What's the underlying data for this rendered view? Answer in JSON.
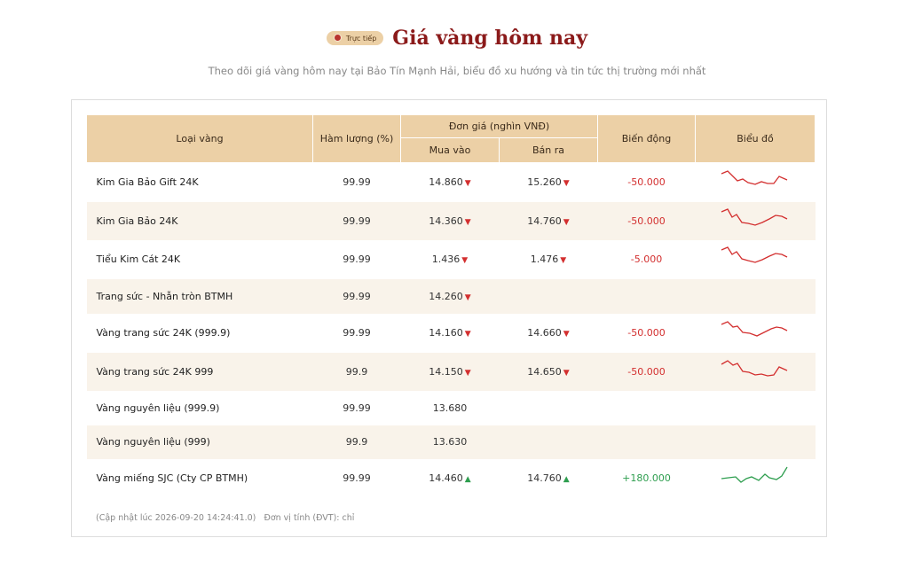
{
  "header": {
    "badge": "Trực tiếp",
    "title": "Giá vàng hôm nay",
    "subtitle": "Theo dõi giá vàng hôm nay tại Bảo Tín Mạnh Hải, biểu đồ xu hướng và tin tức thị trường mới nhất"
  },
  "table": {
    "columns": {
      "type": "Loại vàng",
      "purity": "Hàm lượng (%)",
      "price": "Đơn giá (nghìn VNĐ)",
      "buy": "Mua vào",
      "sell": "Bán ra",
      "change": "Biến động",
      "chart": "Biểu đồ"
    },
    "rows": [
      {
        "name": "Kim Gia Bảo Gift 24K",
        "purity": "99.99",
        "buy": "14.860",
        "sell": "15.260",
        "change": "-50.000"
      },
      {
        "name": "Kim Gia Bảo 24K",
        "purity": "99.99",
        "buy": "14.360",
        "sell": "14.760",
        "change": "-50.000"
      },
      {
        "name": "Tiểu Kim Cát 24K",
        "purity": "99.99",
        "buy": "1.436",
        "sell": "1.476",
        "change": "-5.000"
      },
      {
        "name": "Trang sức - Nhẫn tròn BTMH",
        "purity": "99.99",
        "buy": "14.260"
      },
      {
        "name": "Vàng trang sức 24K (999.9)",
        "purity": "99.99",
        "buy": "14.160",
        "sell": "14.660",
        "change": "-50.000"
      },
      {
        "name": "Vàng trang sức 24K 999",
        "purity": "99.9",
        "buy": "14.150",
        "sell": "14.650",
        "change": "-50.000"
      },
      {
        "name": "Vàng nguyên liệu (999.9)",
        "purity": "99.99",
        "buy": "13.680"
      },
      {
        "name": "Vàng nguyên liệu (999)",
        "purity": "99.9",
        "buy": "13.630"
      },
      {
        "name": "Vàng miếng SJC (Cty CP BTMH)",
        "purity": "99.99",
        "buy": "14.460",
        "sell": "14.760",
        "change": "+180.000"
      }
    ]
  },
  "footer": {
    "updated": "(Cập nhật lúc 2026-09-20 14:24:41.0)",
    "unit": "Đơn vị tính (ĐVT): chỉ"
  }
}
